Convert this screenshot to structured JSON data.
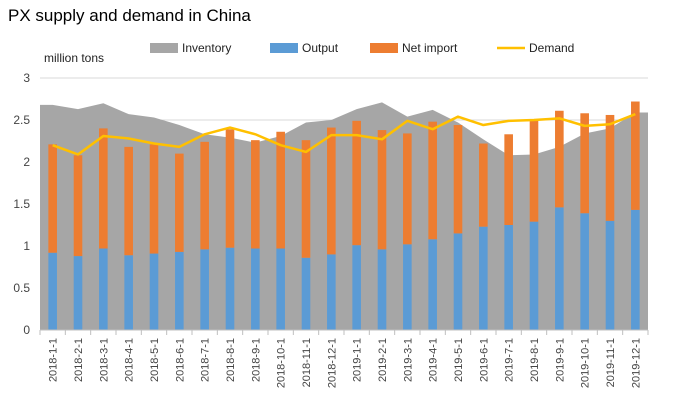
{
  "chart_data": {
    "type": "bar",
    "title": "PX supply and demand in China",
    "ylabel": "million tons",
    "xlabel": "",
    "ylim": [
      0,
      3
    ],
    "yticks": [
      "0",
      "0.5",
      "1",
      "1.5",
      "2",
      "2.5",
      "3"
    ],
    "ytick_values": [
      0,
      0.5,
      1,
      1.5,
      2,
      2.5,
      3
    ],
    "grid": true,
    "legend_position": "top",
    "categories": [
      "2018-1-1",
      "2018-2-1",
      "2018-3-1",
      "2018-4-1",
      "2018-5-1",
      "2018-6-1",
      "2018-7-1",
      "2018-8-1",
      "2018-9-1",
      "2018-10-1",
      "2018-11-1",
      "2018-12-1",
      "2019-1-1",
      "2019-2-1",
      "2019-3-1",
      "2019-4-1",
      "2019-5-1",
      "2019-6-1",
      "2019-7-1",
      "2019-8-1",
      "2019-9-1",
      "2019-10-1",
      "2019-11-1",
      "2019-12-1"
    ],
    "series": [
      {
        "name": "Inventory",
        "type": "area",
        "color": "#a6a6a6",
        "values": [
          2.68,
          2.63,
          2.7,
          2.57,
          2.53,
          2.44,
          2.33,
          2.29,
          2.23,
          2.31,
          2.47,
          2.5,
          2.63,
          2.71,
          2.54,
          2.62,
          2.47,
          2.27,
          2.08,
          2.09,
          2.18,
          2.34,
          2.4,
          2.59
        ]
      },
      {
        "name": "Output",
        "type": "bar",
        "color": "#5b9bd5",
        "values": [
          0.92,
          0.88,
          0.97,
          0.89,
          0.91,
          0.93,
          0.96,
          0.98,
          0.97,
          0.97,
          0.86,
          0.9,
          1.01,
          0.96,
          1.02,
          1.08,
          1.15,
          1.23,
          1.25,
          1.29,
          1.46,
          1.39,
          1.3,
          1.43
        ]
      },
      {
        "name": "Net import",
        "type": "bar",
        "color": "#ed7d31",
        "values": [
          1.29,
          1.2,
          1.43,
          1.29,
          1.3,
          1.17,
          1.28,
          1.41,
          1.29,
          1.39,
          1.4,
          1.51,
          1.48,
          1.42,
          1.32,
          1.4,
          1.29,
          0.99,
          1.08,
          1.2,
          1.15,
          1.19,
          1.26,
          1.29
        ]
      },
      {
        "name": "Demand",
        "type": "line",
        "color": "#ffc000",
        "values": [
          2.2,
          2.09,
          2.31,
          2.28,
          2.22,
          2.18,
          2.33,
          2.41,
          2.33,
          2.2,
          2.12,
          2.32,
          2.32,
          2.27,
          2.49,
          2.39,
          2.54,
          2.44,
          2.49,
          2.5,
          2.52,
          2.43,
          2.45,
          2.57
        ]
      }
    ]
  }
}
